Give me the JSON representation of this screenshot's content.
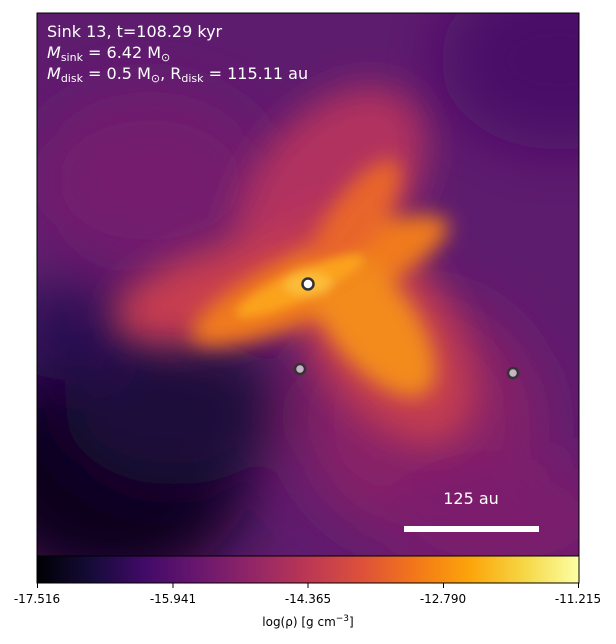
{
  "annotations": {
    "line1": "Sink 13, t=108.29 kyr",
    "line2_prefix": "M",
    "line2_sub": "sink",
    "line2_rest": " = 6.42 M",
    "line2_sun": "⊙",
    "line3_prefix": "M",
    "line3_sub": "disk",
    "line3_mid": " = 0.5 M",
    "line3_sun": "⊙",
    "line3_sep": ", R",
    "line3_sub2": "disk",
    "line3_rest": " = 115.11 au",
    "scale_bar_label": "125 au"
  },
  "colorbar": {
    "label_prefix": "log(ρ) [g cm",
    "label_sup": "−3",
    "label_suffix": "]",
    "ticks": [
      "-17.516",
      "-15.941",
      "-14.365",
      "-12.790",
      "-11.215"
    ],
    "tick_values": [
      -17.516,
      -15.941,
      -14.365,
      -12.79,
      -11.215
    ],
    "min": -17.516,
    "max": -11.215,
    "colormap": "inferno"
  },
  "sinks": [
    {
      "name": "sink-primary",
      "fill": "#ffffff",
      "edge": "#333333"
    },
    {
      "name": "sink-secondary",
      "fill": "#c9b3c6",
      "edge": "#333333"
    },
    {
      "name": "sink-tertiary",
      "fill": "#c9b3c6",
      "edge": "#333333"
    }
  ],
  "colors": {
    "background_field": "#5e1c6e",
    "bright_core": "#fcb13f",
    "dark_region": "#07051a",
    "text": "#ffffff",
    "scale_bar": "#ffffff"
  }
}
